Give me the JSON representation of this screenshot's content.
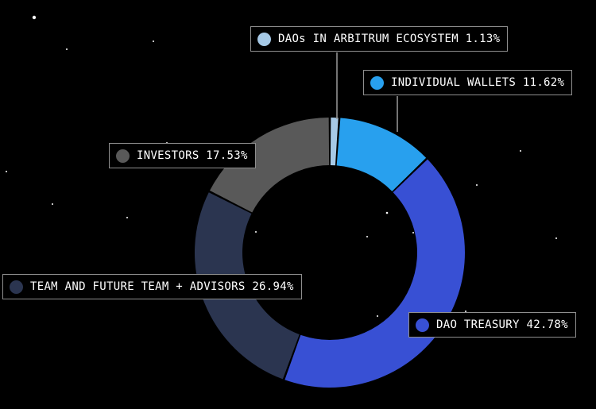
{
  "chart_data": {
    "type": "pie",
    "donut": true,
    "title": "",
    "slices": [
      {
        "label": "DAOs IN ARBITRUM ECOSYSTEM",
        "value": 1.13,
        "value_text": "1.13%",
        "color": "#a6c9e6"
      },
      {
        "label": "INDIVIDUAL WALLETS",
        "value": 11.62,
        "value_text": "11.62%",
        "color": "#28a0ee"
      },
      {
        "label": "DAO TREASURY",
        "value": 42.78,
        "value_text": "42.78%",
        "color": "#3850d4"
      },
      {
        "label": "TEAM AND FUTURE TEAM + ADVISORS",
        "value": 26.94,
        "value_text": "26.94%",
        "color": "#2b3550"
      },
      {
        "label": "INVESTORS",
        "value": 17.53,
        "value_text": "17.53%",
        "color": "#595959"
      }
    ]
  },
  "colors": {
    "background": "#000000",
    "label_border": "#8f8f8f",
    "label_text": "#ffffff",
    "leader_line": "#9a9a9a"
  }
}
